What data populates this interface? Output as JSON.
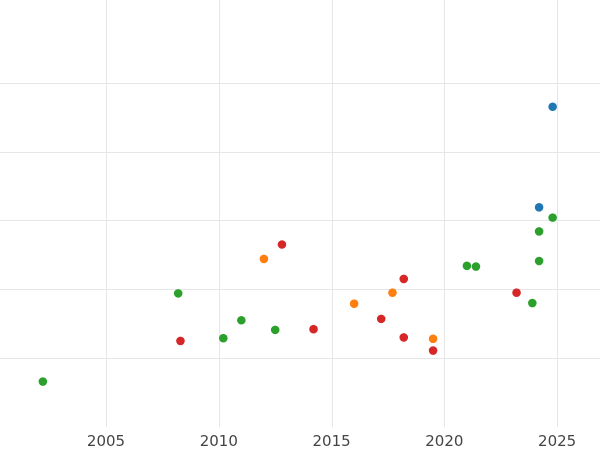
{
  "chart_data": {
    "type": "scatter",
    "title": "",
    "xlabel": "",
    "ylabel": "",
    "xlim": [
      2000.3,
      2026.9
    ],
    "ylim": [
      0,
      6.2
    ],
    "x_ticks": [
      2005,
      2010,
      2015,
      2020,
      2025
    ],
    "x_tick_labels": [
      "2005",
      "2010",
      "2015",
      "2020",
      "2025"
    ],
    "y_gridlines": [
      1,
      2,
      3,
      4,
      5
    ],
    "grid": true,
    "legend": "none",
    "series": [
      {
        "color": "#1f77b4",
        "points": [
          [
            2024.8,
            4.65
          ],
          [
            2024.2,
            3.19
          ]
        ]
      },
      {
        "color": "#2ca02c",
        "points": [
          [
            2002.2,
            0.66
          ],
          [
            2008.2,
            1.94
          ],
          [
            2010.2,
            1.29
          ],
          [
            2011.0,
            1.55
          ],
          [
            2012.5,
            1.41
          ],
          [
            2021.0,
            2.34
          ],
          [
            2021.4,
            2.33
          ],
          [
            2023.9,
            1.8
          ],
          [
            2024.2,
            2.41
          ],
          [
            2024.2,
            2.84
          ],
          [
            2024.8,
            3.04
          ]
        ]
      },
      {
        "color": "#ff7f0e",
        "points": [
          [
            2012.0,
            2.44
          ],
          [
            2016.0,
            1.79
          ],
          [
            2017.7,
            1.95
          ],
          [
            2019.5,
            1.28
          ]
        ]
      },
      {
        "color": "#d62728",
        "points": [
          [
            2008.3,
            1.25
          ],
          [
            2012.8,
            2.65
          ],
          [
            2014.2,
            1.42
          ],
          [
            2017.2,
            1.57
          ],
          [
            2018.2,
            2.15
          ],
          [
            2018.2,
            1.3
          ],
          [
            2019.5,
            1.11
          ],
          [
            2023.2,
            1.95
          ]
        ]
      }
    ]
  }
}
